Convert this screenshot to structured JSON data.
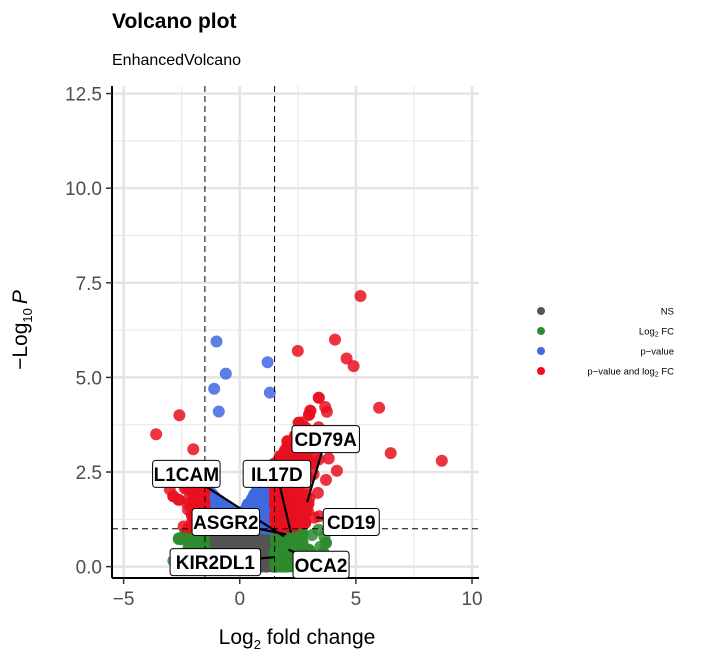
{
  "chart_data": {
    "type": "scatter",
    "title": "Volcano plot",
    "subtitle": "EnhancedVolcano",
    "xlabel": {
      "pre": "Log",
      "sub": "2",
      "post": " fold change"
    },
    "ylabel": {
      "pre": "−Log",
      "sub": "10",
      "italic": "P"
    },
    "xlim": [
      -5.5,
      10.3
    ],
    "ylim": [
      -0.3,
      12.7
    ],
    "x_ticks": [
      -5,
      0,
      5,
      10
    ],
    "x_tick_labels": [
      "−5",
      "0",
      "5",
      "10"
    ],
    "y_ticks": [
      0,
      2.5,
      5,
      7.5,
      10,
      12.5
    ],
    "y_tick_labels": [
      "0.0",
      "2.5",
      "5.0",
      "7.5",
      "10.0",
      "12.5"
    ],
    "fc_cutoff": 1.5,
    "p_cutoff_neglog10": 1.0,
    "grid": true,
    "legend_position": "right",
    "legend": [
      {
        "key": "NS",
        "label": "NS",
        "color": "#555555"
      },
      {
        "key": "FC",
        "label": {
          "pre": "Log",
          "sub": "2",
          "post": " FC"
        },
        "color": "#2e8b2e"
      },
      {
        "key": "P",
        "label": "p−value",
        "color": "#4169e1"
      },
      {
        "key": "PFC",
        "label": {
          "pre": "p−value and log",
          "sub": "2",
          "post": " FC"
        },
        "color": "#e8101e"
      }
    ],
    "highlighted_points": [
      {
        "x": 5.2,
        "y": 7.15,
        "cat": "PFC"
      },
      {
        "x": 8.7,
        "y": 2.8,
        "cat": "PFC"
      },
      {
        "x": 4.1,
        "y": 6.0,
        "cat": "PFC"
      },
      {
        "x": 4.6,
        "y": 5.5,
        "cat": "PFC"
      },
      {
        "x": 4.9,
        "y": 5.3,
        "cat": "PFC"
      },
      {
        "x": 2.5,
        "y": 5.7,
        "cat": "PFC"
      },
      {
        "x": 6.0,
        "y": 4.2,
        "cat": "PFC"
      },
      {
        "x": 6.5,
        "y": 3.0,
        "cat": "PFC"
      },
      {
        "x": -3.6,
        "y": 3.5,
        "cat": "PFC"
      },
      {
        "x": -2.6,
        "y": 4.0,
        "cat": "PFC"
      },
      {
        "x": -2.0,
        "y": 3.1,
        "cat": "PFC"
      },
      {
        "x": -1.0,
        "y": 5.95,
        "cat": "P"
      },
      {
        "x": 1.2,
        "y": 5.4,
        "cat": "P"
      },
      {
        "x": -0.6,
        "y": 5.1,
        "cat": "P"
      },
      {
        "x": -1.1,
        "y": 4.7,
        "cat": "P"
      },
      {
        "x": 1.3,
        "y": 4.6,
        "cat": "P"
      },
      {
        "x": -0.9,
        "y": 4.1,
        "cat": "P"
      }
    ],
    "labels": [
      {
        "text": "CD79A",
        "x": 3.7,
        "y": 3.37,
        "px": 2.9,
        "py": 1.7
      },
      {
        "text": "L1CAM",
        "x": -2.3,
        "y": 2.45,
        "px": 1.9,
        "py": 0.8
      },
      {
        "text": "IL17D",
        "x": 1.6,
        "y": 2.45,
        "px": 2.2,
        "py": 0.9
      },
      {
        "text": "ASGR2",
        "x": -0.6,
        "y": 1.18,
        "px": 2.0,
        "py": 0.85
      },
      {
        "text": "CD19",
        "x": 4.8,
        "y": 1.18,
        "px": 3.3,
        "py": 1.3
      },
      {
        "text": "KIR2DL1",
        "x": -1.05,
        "y": 0.12,
        "px": 1.5,
        "py": 0.25
      },
      {
        "text": "OCA2",
        "x": 3.5,
        "y": 0.05,
        "px": 2.1,
        "py": 0.45
      }
    ]
  }
}
